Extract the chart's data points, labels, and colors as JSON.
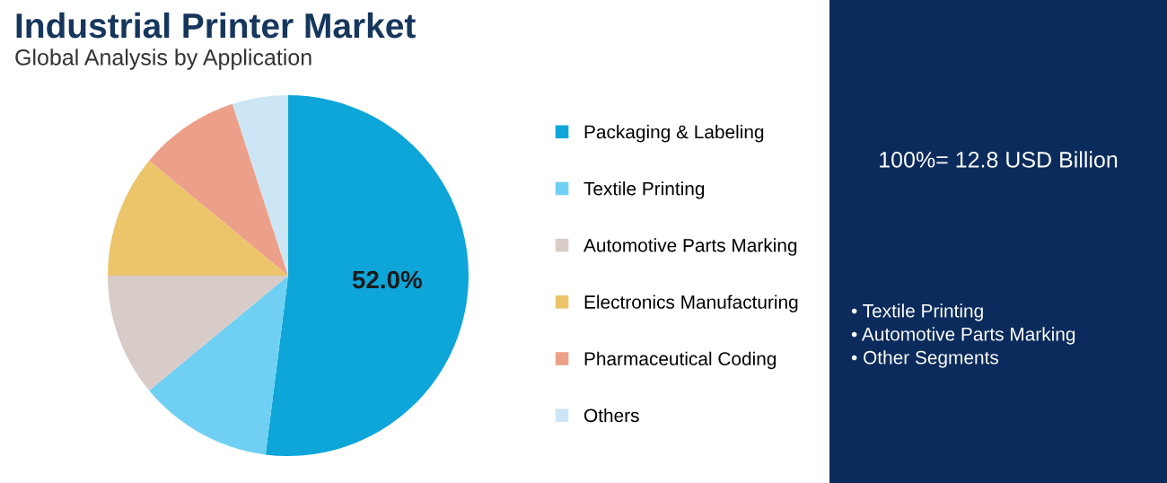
{
  "chart_data": {
    "type": "pie",
    "title": "Industrial Printer Market",
    "subtitle": "Global Analysis by Application",
    "categories": [
      "Packaging & Labeling",
      "Textile Printing",
      "Automotive Parts Marking",
      "Electronics Manufacturing",
      "Pharmaceutical Coding",
      "Others"
    ],
    "values": [
      52.0,
      12,
      11,
      11,
      9,
      5
    ],
    "colors": [
      "#0ea5d9",
      "#6fd0f3",
      "#d8ccc8",
      "#ecc56a",
      "#eda089",
      "#cce6f5"
    ],
    "value_labels": [
      "52.0%",
      null,
      null,
      null,
      null,
      null
    ],
    "legend": "right",
    "annotations": [
      "100%= 12.8 USD Billion",
      "• Textile Printing",
      "• Automotive Parts Marking",
      "• Other Segments"
    ]
  }
}
